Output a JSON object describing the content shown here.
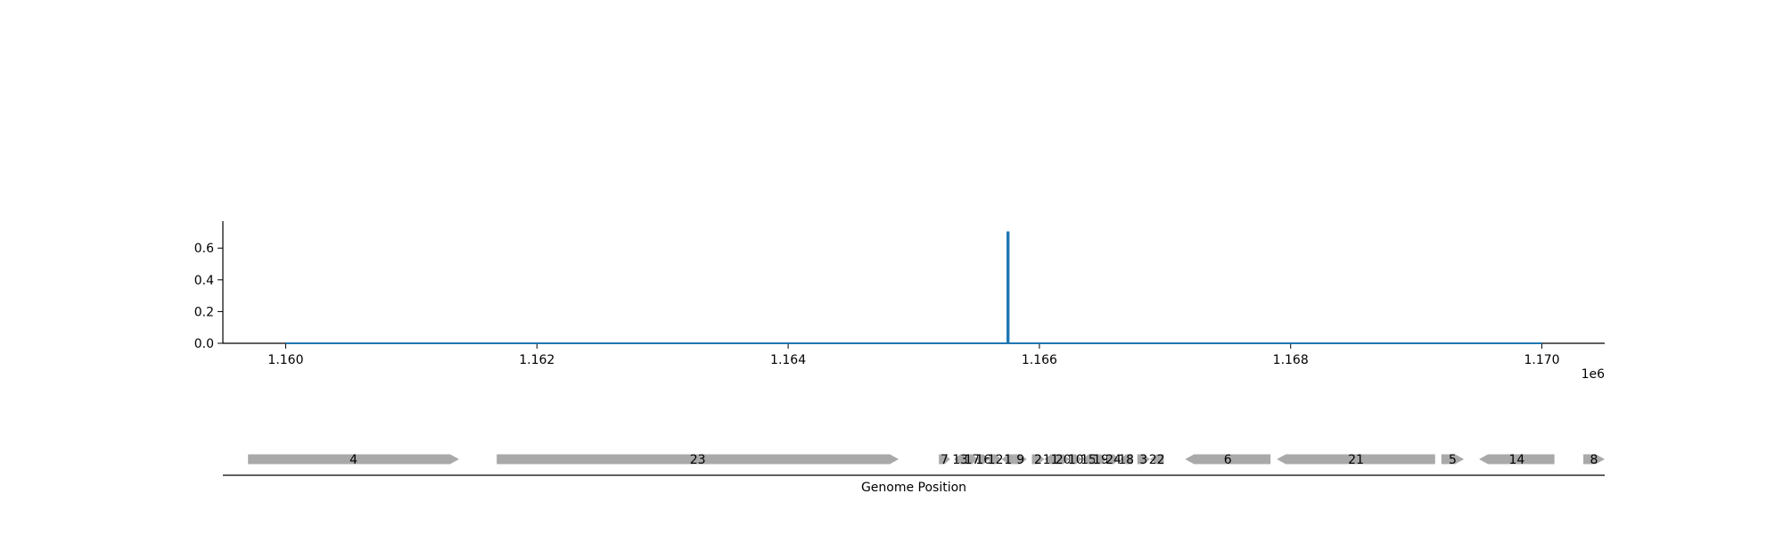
{
  "chart_data": [
    {
      "type": "line",
      "title": "",
      "xlabel": "",
      "ylabel": "",
      "x_offset_label": "1e6",
      "xlim": [
        1159500,
        1170500
      ],
      "ylim": [
        0,
        0.77
      ],
      "x_ticks": [
        1160000,
        1162000,
        1164000,
        1166000,
        1168000,
        1170000
      ],
      "x_tick_labels": [
        "1.160",
        "1.162",
        "1.164",
        "1.166",
        "1.168",
        "1.170"
      ],
      "y_ticks": [
        0.0,
        0.2,
        0.4,
        0.6
      ],
      "y_tick_labels": [
        "0.0",
        "0.2",
        "0.4",
        "0.6"
      ],
      "grid": false,
      "color": "#1f77b4",
      "x": [
        1160000,
        1165745,
        1165745,
        1165755,
        1165755,
        1170000
      ],
      "y": [
        0,
        0,
        0.7,
        0.7,
        0,
        0
      ]
    },
    {
      "type": "gene-track",
      "xlabel": "Genome Position",
      "color": "#a9a9a9",
      "genes": [
        {
          "label": "4",
          "start": 1159700,
          "end": 1161380,
          "strand": "+"
        },
        {
          "label": "23",
          "start": 1161680,
          "end": 1164880,
          "strand": "+"
        },
        {
          "label": "7",
          "start": 1165200,
          "end": 1165290,
          "strand": "+"
        },
        {
          "label": "13",
          "start": 1165320,
          "end": 1165420,
          "strand": "-"
        },
        {
          "label": "17",
          "start": 1165420,
          "end": 1165510,
          "strand": "+"
        },
        {
          "label": "16",
          "start": 1165510,
          "end": 1165600,
          "strand": "+"
        },
        {
          "label": "12",
          "start": 1165600,
          "end": 1165700,
          "strand": "+"
        },
        {
          "label": "1",
          "start": 1165700,
          "end": 1165800,
          "strand": "-"
        },
        {
          "label": "9",
          "start": 1165800,
          "end": 1165900,
          "strand": "+"
        },
        {
          "label": "2",
          "start": 1165940,
          "end": 1166040,
          "strand": "+"
        },
        {
          "label": "11",
          "start": 1166040,
          "end": 1166140,
          "strand": "-"
        },
        {
          "label": "20",
          "start": 1166140,
          "end": 1166240,
          "strand": "+"
        },
        {
          "label": "10",
          "start": 1166240,
          "end": 1166340,
          "strand": "+"
        },
        {
          "label": "15",
          "start": 1166340,
          "end": 1166440,
          "strand": "-"
        },
        {
          "label": "19",
          "start": 1166440,
          "end": 1166540,
          "strand": "+"
        },
        {
          "label": "24",
          "start": 1166540,
          "end": 1166640,
          "strand": "+"
        },
        {
          "label": "18",
          "start": 1166640,
          "end": 1166740,
          "strand": "-"
        },
        {
          "label": "3",
          "start": 1166780,
          "end": 1166880,
          "strand": "+"
        },
        {
          "label": "22",
          "start": 1166880,
          "end": 1166990,
          "strand": "-"
        },
        {
          "label": "6",
          "start": 1167160,
          "end": 1167840,
          "strand": "-"
        },
        {
          "label": "21",
          "start": 1167890,
          "end": 1169150,
          "strand": "-"
        },
        {
          "label": "5",
          "start": 1169200,
          "end": 1169380,
          "strand": "+"
        },
        {
          "label": "14",
          "start": 1169500,
          "end": 1170100,
          "strand": "-"
        },
        {
          "label": "8",
          "start": 1170330,
          "end": 1170500,
          "strand": "+"
        }
      ]
    }
  ]
}
